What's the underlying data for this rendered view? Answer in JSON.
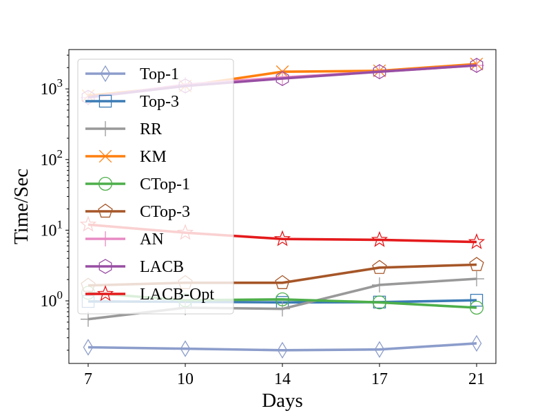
{
  "chart_data": {
    "type": "line",
    "title": "",
    "xlabel": "Days",
    "ylabel": "Time/Sec",
    "yscale": "log",
    "ylim": [
      0.13,
      3600
    ],
    "x_tick_labels": [
      "7",
      "10",
      "14",
      "17",
      "21"
    ],
    "y_tick_labels": [
      {
        "base": "10",
        "exp": "0",
        "value": 1
      },
      {
        "base": "10",
        "exp": "1",
        "value": 10
      },
      {
        "base": "10",
        "exp": "2",
        "value": 100
      },
      {
        "base": "10",
        "exp": "3",
        "value": 1000
      }
    ],
    "legend_position": "upper-left",
    "series": [
      {
        "name": "Top-1",
        "color": "#8c9dcb",
        "marker": "thin-diamond",
        "values": [
          0.22,
          0.21,
          0.2,
          0.205,
          0.25
        ]
      },
      {
        "name": "Top-3",
        "color": "#3b7bb5",
        "marker": "square",
        "values": [
          0.98,
          0.97,
          0.95,
          0.96,
          1.02
        ]
      },
      {
        "name": "RR",
        "color": "#999999",
        "marker": "plus",
        "values": [
          0.55,
          0.8,
          0.77,
          1.68,
          2.05
        ]
      },
      {
        "name": "KM",
        "color": "#ff7f0e",
        "marker": "x",
        "values": [
          800,
          1100,
          1750,
          1800,
          2250
        ]
      },
      {
        "name": "CTop-1",
        "color": "#4daf4a",
        "marker": "circle",
        "values": [
          1.3,
          1.02,
          1.05,
          0.95,
          0.8
        ]
      },
      {
        "name": "CTop-3",
        "color": "#a65628",
        "marker": "pentagon",
        "values": [
          1.65,
          1.8,
          1.8,
          2.95,
          3.25
        ]
      },
      {
        "name": "AN",
        "color": "#e78ac3",
        "marker": "plus",
        "values": [
          750,
          1150,
          1450,
          1750,
          2150
        ]
      },
      {
        "name": "LACB",
        "color": "#984ea3",
        "marker": "hexagon",
        "values": [
          760,
          1100,
          1400,
          1750,
          2150
        ]
      },
      {
        "name": "LACB-Opt",
        "color": "#e41a1c",
        "marker": "star",
        "values": [
          12,
          9.2,
          7.5,
          7.3,
          6.8
        ]
      }
    ]
  }
}
